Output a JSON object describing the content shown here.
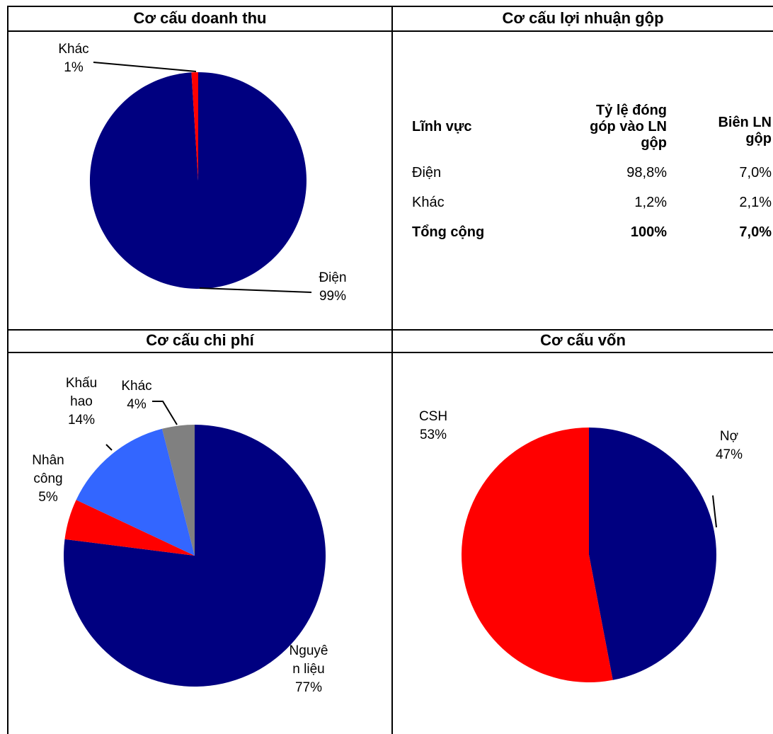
{
  "panels": {
    "revenue": {
      "title": "Cơ cấu doanh thu"
    },
    "gross_profit": {
      "title": "Cơ cấu lợi nhuận gộp"
    },
    "cost": {
      "title": "Cơ cấu chi phí"
    },
    "capital": {
      "title": "Cơ cấu vốn"
    }
  },
  "table": {
    "headers": [
      "Lĩnh vực",
      "Tỷ lệ đóng góp vào LN gộp",
      "Biên LN gộp"
    ],
    "header_lines": {
      "col1": [
        "Lĩnh vực"
      ],
      "col2": [
        "Tỷ lệ đóng",
        "góp vào LN",
        "gộp"
      ],
      "col3": [
        "Biên LN",
        "gộp"
      ]
    },
    "rows": [
      {
        "name": "Điện",
        "share": "98,8%",
        "margin": "7,0%"
      },
      {
        "name": "Khác",
        "share": "1,2%",
        "margin": "2,1%"
      },
      {
        "name": "Tổng cộng",
        "share": "100%",
        "margin": "7,0%"
      }
    ]
  },
  "chart_data": [
    {
      "type": "pie",
      "title": "Cơ cấu doanh thu",
      "slices": [
        {
          "label_lines": [
            "Điện",
            "99%"
          ],
          "category": "Điện",
          "value": 99,
          "color": "#000080"
        },
        {
          "label_lines": [
            "Khác",
            "1%"
          ],
          "category": "Khác",
          "value": 1,
          "color": "#ff0000"
        }
      ]
    },
    {
      "type": "pie",
      "title": "Cơ cấu chi phí",
      "slices": [
        {
          "label_lines": [
            "Nguyê",
            "n liệu",
            "77%"
          ],
          "category": "Nguyên liệu",
          "value": 77,
          "color": "#000080"
        },
        {
          "label_lines": [
            "Nhân",
            "công",
            "5%"
          ],
          "category": "Nhân công",
          "value": 5,
          "color": "#ff0000"
        },
        {
          "label_lines": [
            "Khấu",
            "hao",
            "14%"
          ],
          "category": "Khấu hao",
          "value": 14,
          "color": "#3366ff"
        },
        {
          "label_lines": [
            "Khác",
            "4%"
          ],
          "category": "Khác",
          "value": 4,
          "color": "#808080"
        }
      ]
    },
    {
      "type": "pie",
      "title": "Cơ cấu vốn",
      "slices": [
        {
          "label_lines": [
            "Nợ",
            "47%"
          ],
          "category": "Nợ",
          "value": 47,
          "color": "#000080"
        },
        {
          "label_lines": [
            "CSH",
            "53%"
          ],
          "category": "CSH",
          "value": 53,
          "color": "#ff0000"
        }
      ]
    }
  ]
}
